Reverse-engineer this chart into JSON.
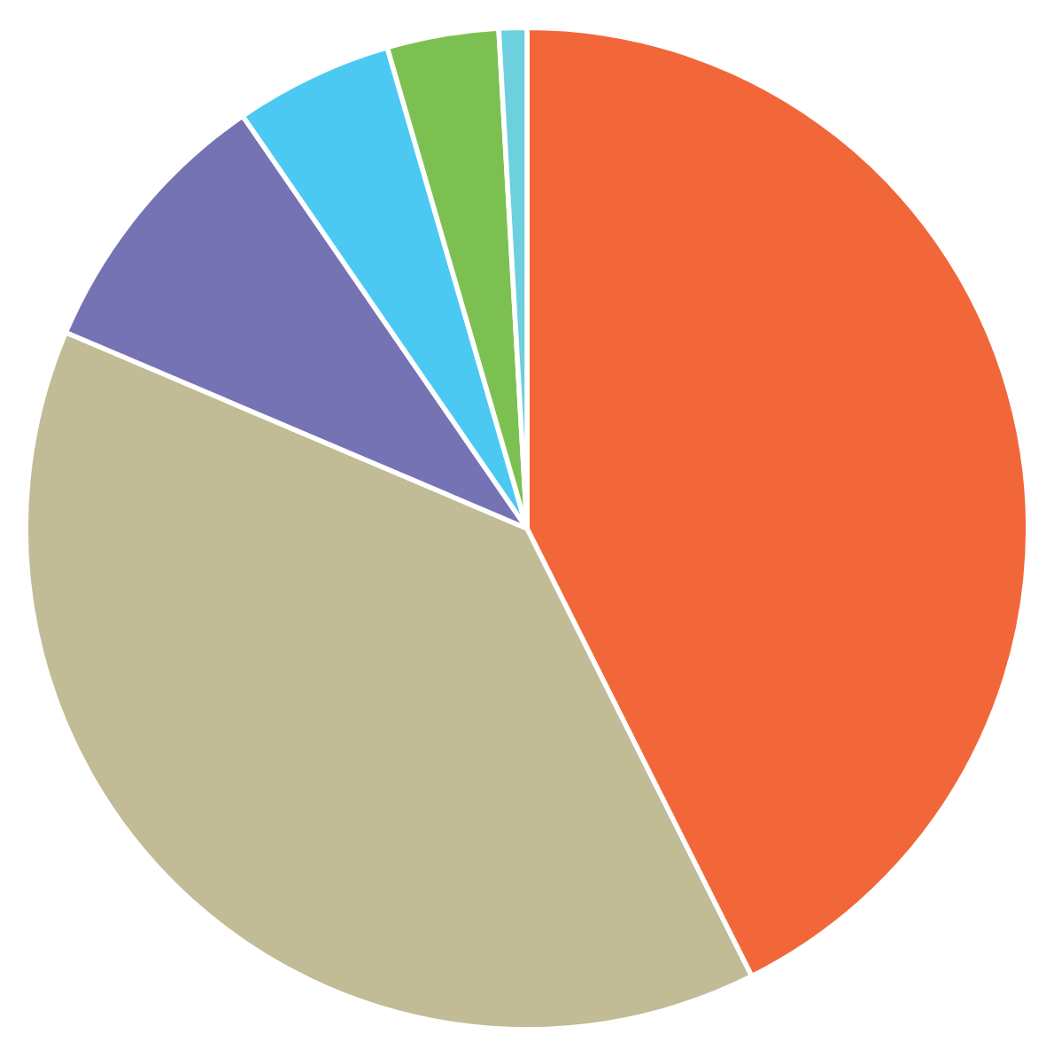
{
  "chart_data": {
    "type": "pie",
    "categories": [
      null,
      null,
      null,
      null,
      null,
      null
    ],
    "values": [
      42.6,
      38.8,
      9.0,
      5.1,
      3.6,
      0.9
    ],
    "colors": [
      "#f26739",
      "#c1bb96",
      "#7673b4",
      "#4cc9f3",
      "#7dc052",
      "#6ecfde"
    ]
  }
}
